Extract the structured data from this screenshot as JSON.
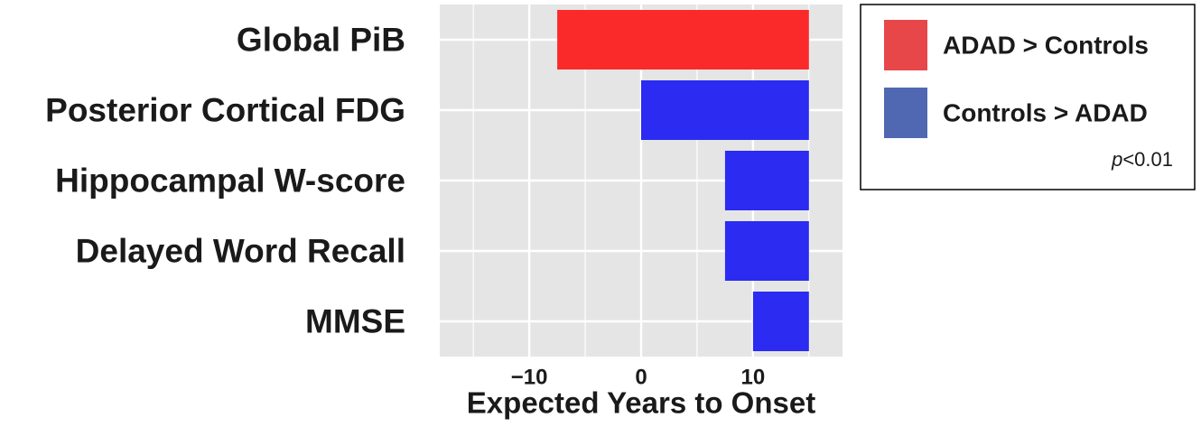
{
  "chart_data": {
    "type": "bar",
    "orientation": "horizontal",
    "title": "",
    "xlabel": "Expected Years to Onset",
    "ylabel": "",
    "xlim": [
      -18,
      18
    ],
    "xticks": [
      -10,
      0,
      10
    ],
    "xtick_labels": [
      "−10",
      "0",
      "10"
    ],
    "grid": true,
    "legend_position": "right",
    "categories": [
      "Global PiB",
      "Posterior Cortical FDG",
      "Hippocampal W-score",
      "Delayed Word Recall",
      "MMSE"
    ],
    "bars": [
      {
        "category": "Global PiB",
        "start": -7.5,
        "end": 15,
        "group": "ADAD > Controls"
      },
      {
        "category": "Posterior Cortical FDG",
        "start": 0,
        "end": 15,
        "group": "Controls > ADAD"
      },
      {
        "category": "Hippocampal W-score",
        "start": 7.5,
        "end": 15,
        "group": "Controls > ADAD"
      },
      {
        "category": "Delayed Word Recall",
        "start": 7.5,
        "end": 15,
        "group": "Controls > ADAD"
      },
      {
        "category": "MMSE",
        "start": 10,
        "end": 15,
        "group": "Controls > ADAD"
      }
    ],
    "series": [
      {
        "name": "ADAD > Controls",
        "color": "#fa2a2a"
      },
      {
        "name": "Controls > ADAD",
        "color": "#2b2bf2"
      }
    ],
    "legend": {
      "items": [
        {
          "label": "ADAD > Controls",
          "color": "#e8474a"
        },
        {
          "label": "Controls > ADAD",
          "color": "#5068b2"
        }
      ],
      "note_italic": "p",
      "note_rest": "<0.01"
    }
  }
}
